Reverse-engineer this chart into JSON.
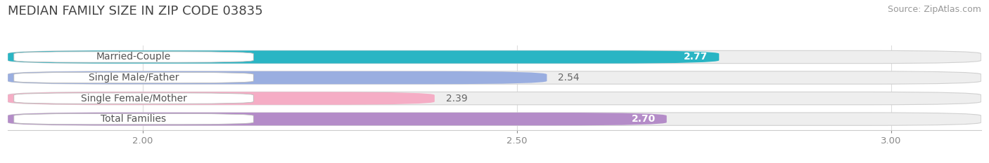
{
  "title": "MEDIAN FAMILY SIZE IN ZIP CODE 03835",
  "source": "Source: ZipAtlas.com",
  "categories": [
    "Married-Couple",
    "Single Male/Father",
    "Single Female/Mother",
    "Total Families"
  ],
  "values": [
    2.77,
    2.54,
    2.39,
    2.7
  ],
  "bar_colors": [
    "#2ab5c4",
    "#9aaee0",
    "#f5adc5",
    "#b48cc8"
  ],
  "xlim_min": 1.82,
  "xlim_max": 3.12,
  "xticks": [
    2.0,
    2.5,
    3.0
  ],
  "xtick_labels": [
    "2.00",
    "2.50",
    "3.00"
  ],
  "bar_height": 0.62,
  "bar_gap": 0.38,
  "label_fontsize": 10,
  "value_fontsize": 10,
  "title_fontsize": 13,
  "source_fontsize": 9,
  "background_color": "#ffffff",
  "bar_bg_color": "#eeeeee",
  "label_pill_color": "#ffffff",
  "label_text_color": "#555555",
  "grid_color": "#dddddd",
  "value_inside_color": "#ffffff",
  "value_outside_color": "#666666",
  "inside_threshold": 2.55
}
